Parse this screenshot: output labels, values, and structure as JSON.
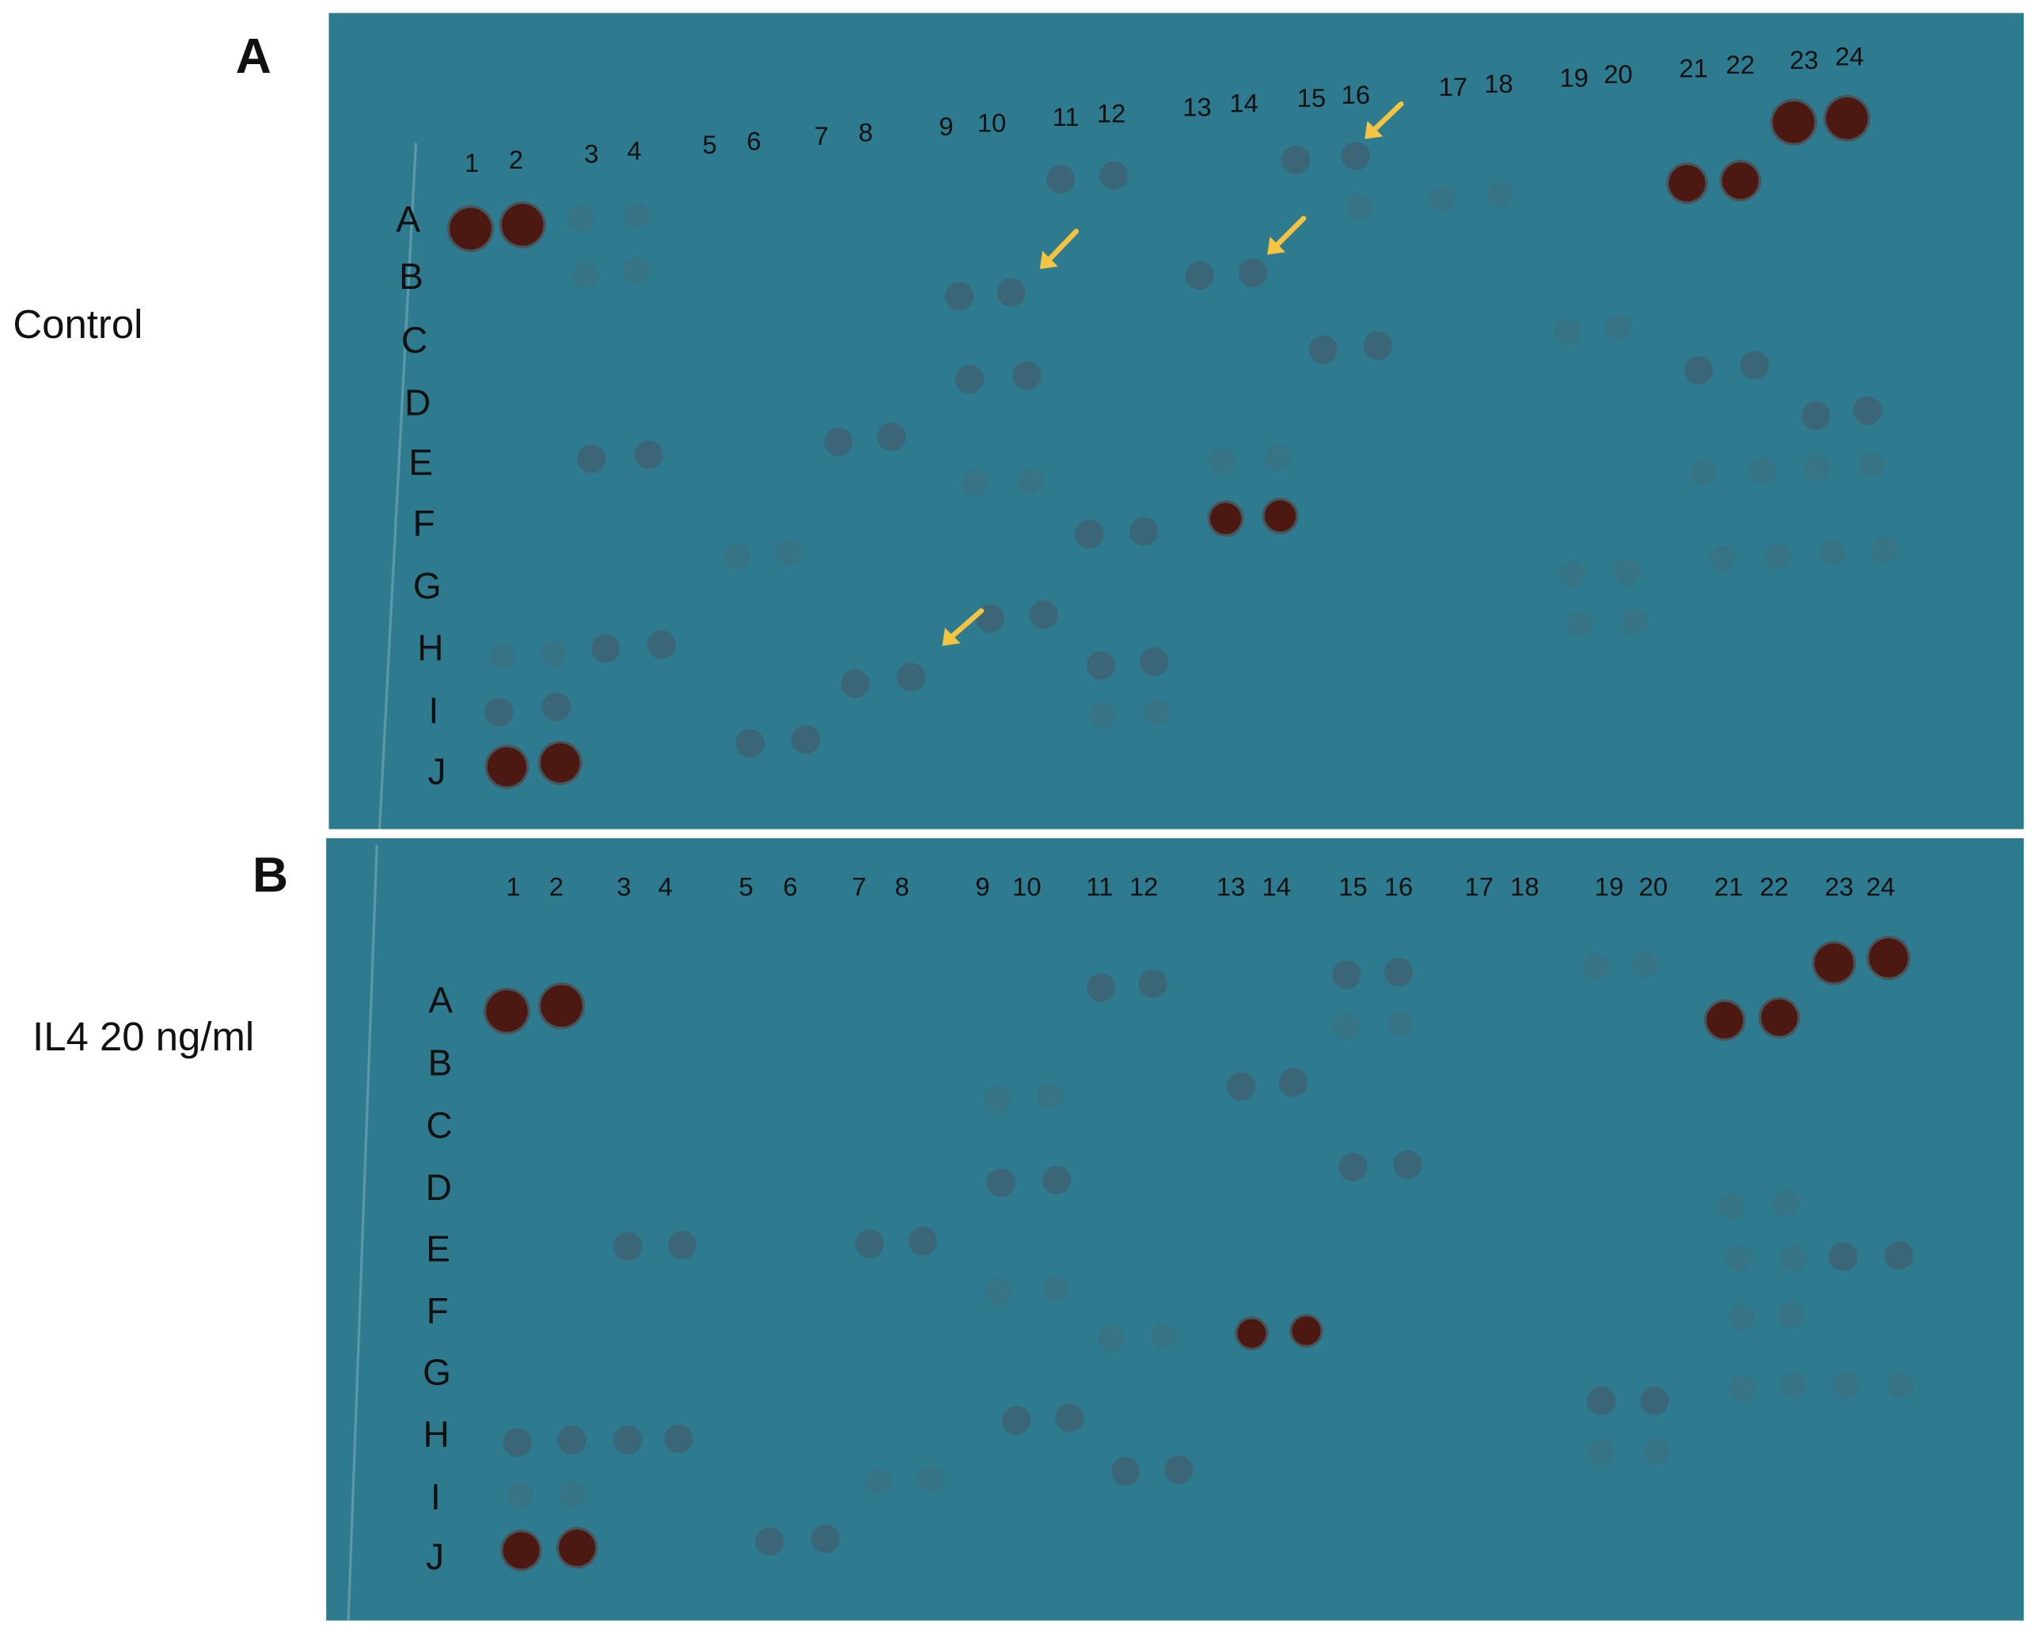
{
  "panels": [
    {
      "letter": "A",
      "condition": "Control",
      "column_labels": [
        "1",
        "2",
        "3",
        "4",
        "5",
        "6",
        "7",
        "8",
        "9",
        "10",
        "11",
        "12",
        "13",
        "14",
        "15",
        "16",
        "17",
        "18",
        "19",
        "20",
        "21",
        "22",
        "23",
        "24"
      ],
      "row_labels": [
        "A",
        "B",
        "C",
        "D",
        "E",
        "F",
        "G",
        "H",
        "I",
        "J"
      ]
    },
    {
      "letter": "B",
      "condition": "IL4 20 ng/ml",
      "column_labels": [
        "1",
        "2",
        "3",
        "4",
        "5",
        "6",
        "7",
        "8",
        "9",
        "10",
        "11",
        "12",
        "13",
        "14",
        "15",
        "16",
        "17",
        "18",
        "19",
        "20",
        "21",
        "22",
        "23",
        "24"
      ],
      "row_labels": [
        "A",
        "B",
        "C",
        "D",
        "E",
        "F",
        "G",
        "H",
        "I",
        "J"
      ]
    }
  ]
}
